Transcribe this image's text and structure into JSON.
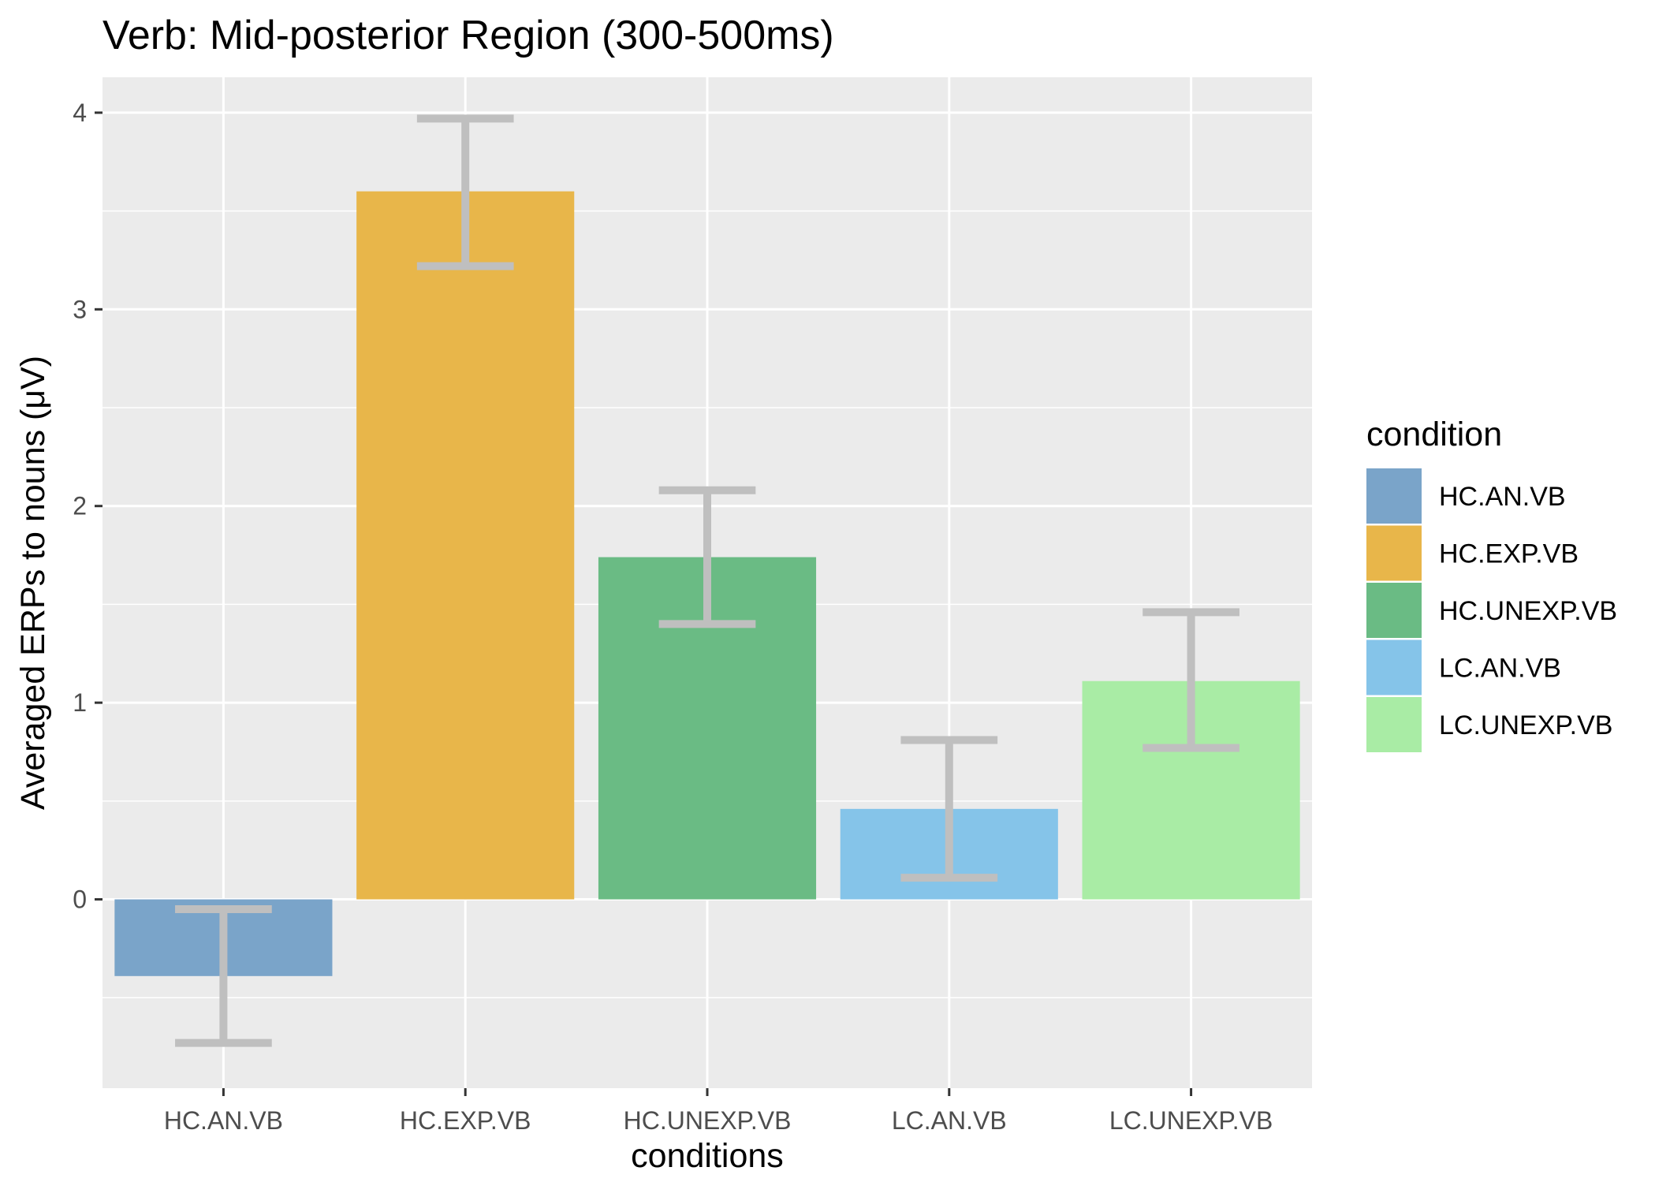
{
  "chart_data": {
    "type": "bar",
    "title": "Verb: Mid-posterior Region (300-500ms)",
    "xlabel": "conditions",
    "ylabel": "Averaged ERPs to nouns (μV)",
    "categories": [
      "HC.AN.VB",
      "HC.EXP.VB",
      "HC.UNEXP.VB",
      "LC.AN.VB",
      "LC.UNEXP.VB"
    ],
    "values": [
      -0.39,
      3.6,
      1.74,
      0.46,
      1.11
    ],
    "error_low": [
      -0.73,
      3.22,
      1.4,
      0.11,
      0.77
    ],
    "error_high": [
      -0.05,
      3.97,
      2.08,
      0.81,
      1.46
    ],
    "colors": [
      "#7aa4c9",
      "#e8b64a",
      "#6abb84",
      "#85c4e9",
      "#a9eca5"
    ],
    "error_bar_color": "#bfbfbf",
    "ylim": [
      -0.96,
      4.18
    ],
    "yticks": [
      "0",
      "1",
      "2",
      "3",
      "4"
    ],
    "grid": true,
    "panel_background": "#ebebeb",
    "legend": {
      "title": "condition",
      "position": "right",
      "entries": [
        "HC.AN.VB",
        "HC.EXP.VB",
        "HC.UNEXP.VB",
        "LC.AN.VB",
        "LC.UNEXP.VB"
      ]
    }
  }
}
